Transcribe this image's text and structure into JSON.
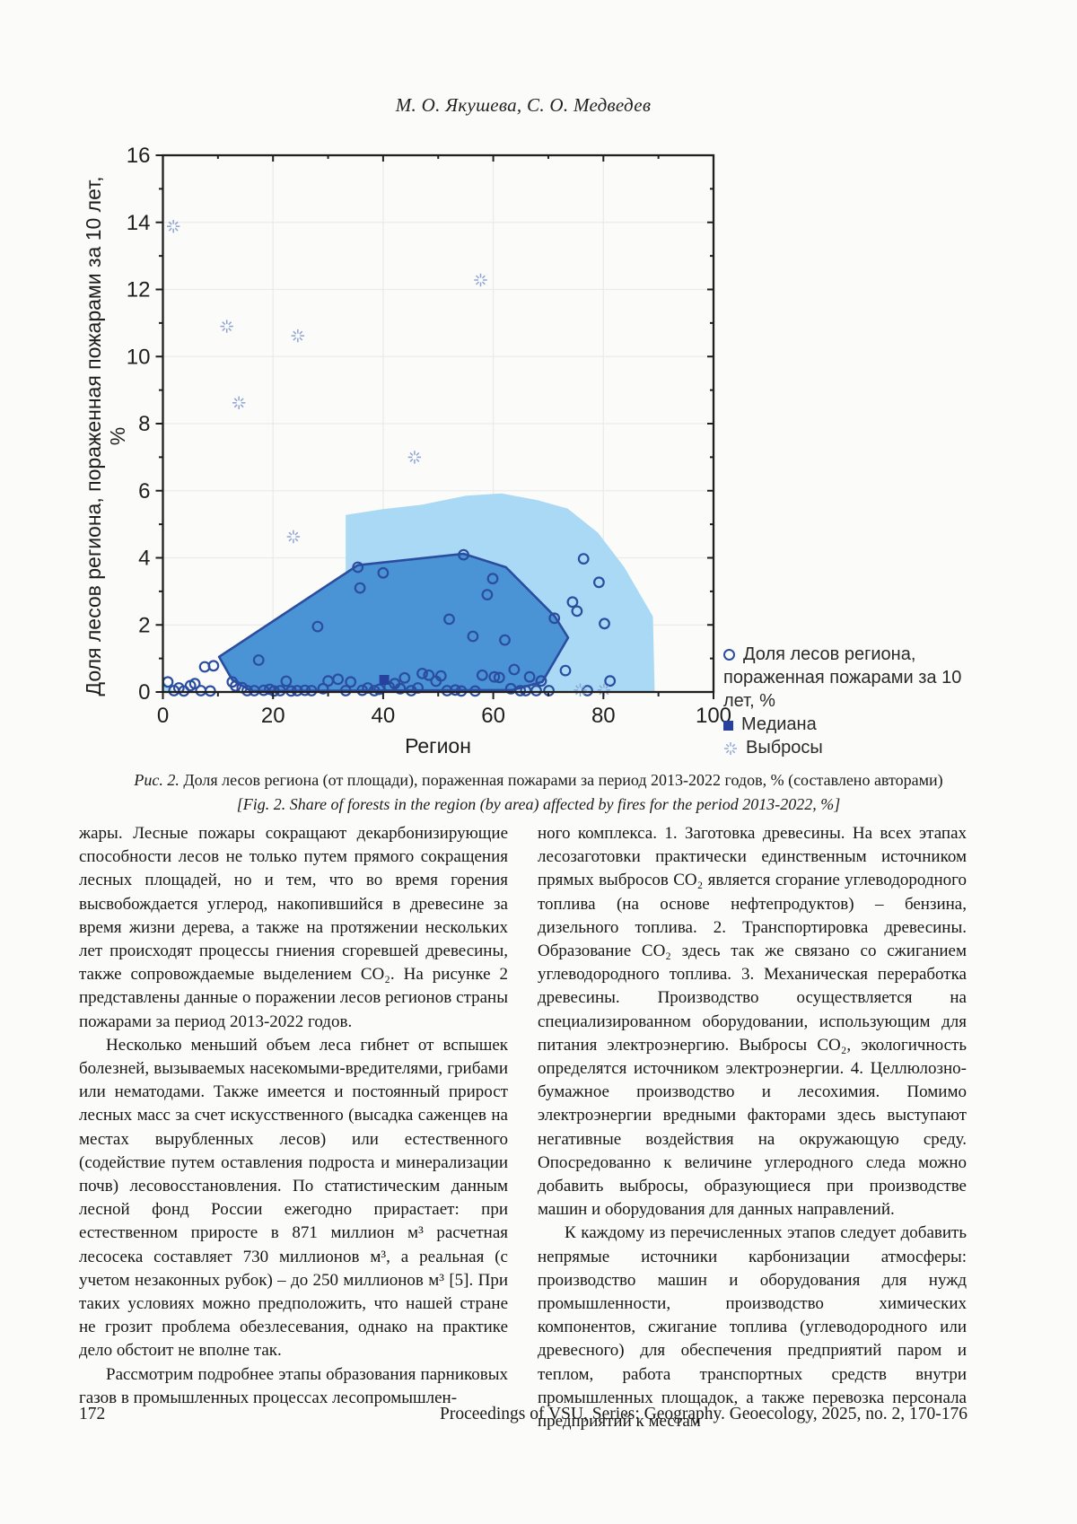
{
  "page": {
    "authors": "М. О. Якушева, С. О. Медведев",
    "footer": {
      "page_number": "172",
      "journal_line": "Proceedings of VSU, Series: Geography. Geoecology, 2025, no. 2, 170-176"
    }
  },
  "figure_caption": {
    "line1_label": "Рис. 2.",
    "line1_text": " Доля лесов региона (от площади), пораженная пожарами за период 2013-2022 годов, % (составлено авторами)",
    "line2_label": "[Fig. 2.",
    "line2_text": " Share of forests in the region (by area) affected by fires for the period 2013-2022, %]"
  },
  "chart_data": {
    "type": "scatter",
    "title": "",
    "xlabel": "Регион",
    "ylabel": "Доля лесов региона, пораженная пожарами за 10 лет, %",
    "xlim": [
      0,
      100
    ],
    "ylim": [
      0,
      16
    ],
    "xticks": [
      0,
      20,
      40,
      60,
      80,
      100
    ],
    "yticks": [
      0,
      2,
      4,
      6,
      8,
      10,
      12,
      14,
      16
    ],
    "x_minor_step": 10,
    "y_minor_step": 1,
    "grid": true,
    "legend": [
      {
        "marker": "open-circle",
        "label": "Доля лесов региона, пораженная пожарами за 10 лет, %"
      },
      {
        "marker": "filled-square",
        "label": "Медиана"
      },
      {
        "marker": "burst",
        "label": "Выбросы"
      }
    ],
    "colors": {
      "inner_fill": "#4a94d6",
      "inner_stroke": "#2b4da0",
      "outer_fill": "#a9d9f4",
      "marker_stroke": "#2b4da0",
      "median_fill": "#27429e",
      "outlier": "#8ea3d4",
      "grid": "#ebebeb",
      "axis": "#1f1f1f",
      "tick_label": "#1e1e1e"
    },
    "points": [
      [
        0.9,
        0.3
      ],
      [
        2.0,
        0.04
      ],
      [
        2.9,
        0.12
      ],
      [
        3.8,
        0.03
      ],
      [
        5.0,
        0.19
      ],
      [
        5.8,
        0.25
      ],
      [
        6.9,
        0.04
      ],
      [
        7.6,
        0.75
      ],
      [
        8.6,
        0.03
      ],
      [
        9.2,
        0.78
      ],
      [
        12.6,
        0.3
      ],
      [
        13.2,
        0.18
      ],
      [
        14.4,
        0.13
      ],
      [
        15.3,
        0.04
      ],
      [
        16.6,
        0.04
      ],
      [
        17.4,
        0.95
      ],
      [
        18.3,
        0.05
      ],
      [
        19.4,
        0.08
      ],
      [
        20.2,
        0.03
      ],
      [
        21.3,
        0.04
      ],
      [
        22.4,
        0.32
      ],
      [
        23.3,
        0.03
      ],
      [
        24.4,
        0.04
      ],
      [
        25.8,
        0.05
      ],
      [
        27.0,
        0.04
      ],
      [
        28.1,
        1.95
      ],
      [
        29.1,
        0.1
      ],
      [
        30.0,
        0.33
      ],
      [
        31.8,
        0.38
      ],
      [
        33.2,
        0.04
      ],
      [
        34.1,
        0.3
      ],
      [
        35.4,
        3.72
      ],
      [
        35.8,
        3.1
      ],
      [
        36.2,
        0.05
      ],
      [
        37.2,
        0.12
      ],
      [
        38.4,
        0.04
      ],
      [
        39.3,
        0.08
      ],
      [
        40.0,
        3.55
      ],
      [
        41.1,
        0.15
      ],
      [
        42.1,
        0.25
      ],
      [
        43.1,
        0.1
      ],
      [
        43.9,
        0.42
      ],
      [
        45.1,
        0.04
      ],
      [
        46.3,
        0.12
      ],
      [
        47.1,
        0.55
      ],
      [
        48.3,
        0.5
      ],
      [
        49.6,
        0.32
      ],
      [
        50.5,
        0.48
      ],
      [
        51.6,
        0.04
      ],
      [
        52.0,
        2.17
      ],
      [
        53.1,
        0.06
      ],
      [
        54.2,
        0.03
      ],
      [
        54.6,
        4.09
      ],
      [
        56.3,
        1.66
      ],
      [
        56.7,
        0.03
      ],
      [
        58.0,
        0.5
      ],
      [
        58.9,
        2.9
      ],
      [
        59.9,
        3.38
      ],
      [
        60.2,
        0.45
      ],
      [
        61.1,
        0.43
      ],
      [
        62.1,
        1.55
      ],
      [
        63.2,
        0.1
      ],
      [
        63.8,
        0.67
      ],
      [
        64.9,
        0.04
      ],
      [
        65.9,
        0.04
      ],
      [
        66.6,
        0.45
      ],
      [
        67.8,
        0.04
      ],
      [
        68.7,
        0.33
      ],
      [
        70.1,
        0.04
      ],
      [
        71.1,
        2.2
      ],
      [
        73.1,
        0.64
      ],
      [
        74.4,
        2.68
      ],
      [
        75.2,
        2.41
      ],
      [
        76.4,
        3.97
      ],
      [
        77.1,
        0.04
      ],
      [
        79.2,
        3.27
      ],
      [
        80.2,
        2.04
      ],
      [
        81.2,
        0.33
      ]
    ],
    "median": [
      40.2,
      0.36
    ],
    "outliers": [
      [
        1.9,
        13.88
      ],
      [
        11.6,
        10.9
      ],
      [
        13.8,
        8.62
      ],
      [
        24.5,
        10.62
      ],
      [
        23.7,
        4.63
      ],
      [
        45.7,
        7.0
      ],
      [
        57.7,
        12.28
      ],
      [
        75.8,
        0.06
      ],
      [
        80.1,
        0.06
      ]
    ],
    "inner_hull": [
      [
        10.2,
        1.05
      ],
      [
        35.4,
        3.78
      ],
      [
        54.6,
        4.12
      ],
      [
        62.3,
        3.72
      ],
      [
        71.2,
        2.25
      ],
      [
        73.6,
        1.62
      ],
      [
        68.9,
        0.3
      ],
      [
        63.5,
        0.06
      ],
      [
        16.0,
        0.03
      ],
      [
        12.6,
        0.36
      ]
    ],
    "outer_region": [
      [
        33.2,
        5.28
      ],
      [
        40.0,
        5.45
      ],
      [
        47.0,
        5.58
      ],
      [
        55.0,
        5.85
      ],
      [
        61.5,
        5.92
      ],
      [
        68.0,
        5.72
      ],
      [
        73.5,
        5.47
      ],
      [
        79.0,
        4.75
      ],
      [
        83.8,
        3.72
      ],
      [
        89.0,
        2.25
      ],
      [
        89.3,
        0.02
      ],
      [
        33.2,
        0.02
      ]
    ],
    "outer_sliver": [
      [
        0.1,
        0.32
      ],
      [
        1.9,
        0.02
      ],
      [
        0.1,
        0.02
      ]
    ]
  },
  "body": {
    "left_col": [
      {
        "indent": false,
        "text": "жары. Лесные пожары сокращают декарбонизирующие способности лесов не только путем прямого сокращения лесных площадей, но и тем, что во время горения высвобождается углерод, накопившийся в древесине за время жизни дерева, а также на протяжении нескольких лет происходят процессы гниения сгоревшей древесины, также сопровождаемые выделением CO₂. На рисунке 2 представлены данные о поражении лесов регионов страны пожарами за период 2013-2022 годов."
      },
      {
        "indent": true,
        "text": "Несколько меньший объем леса гибнет от вспышек болезней, вызываемых насекомыми-вредителями, грибами или нематодами. Также имеется и постоянный прирост лесных масс за счет искусственного (высадка саженцев на местах вырубленных лесов) или естественного (содействие путем оставления подроста и минерализации почв) лесовосстановления. По статистическим данным лесной фонд России ежегодно прирастает: при естественном приросте в 871 миллион м³ расчетная лесосека составляет 730 миллионов м³, а реальная (с учетом незаконных рубок) – до 250 миллионов м³ [5]. При таких условиях можно предположить, что нашей стране не грозит проблема обезлесевания, однако на практике дело обстоит не вполне так."
      },
      {
        "indent": true,
        "text": "Рассмотрим подробнее этапы образования парниковых газов в промышленных процессах лесопромышлен-"
      }
    ],
    "right_col": [
      {
        "indent": false,
        "text": "ного комплекса. 1. Заготовка древесины. На всех этапах лесозаготовки практически единственным источником прямых выбросов CO₂ является сгорание углеводородного топлива (на основе нефтепродуктов) – бензина, дизельного топлива. 2. Транспортировка древесины. Образование CO₂ здесь так же связано со сжиганием углеводородного топлива. 3. Механическая переработка древесины. Производство осуществляется на специализированном оборудовании, использующим для питания электроэнергию. Выбросы CO₂, экологичность определятся источником электроэнергии. 4. Целлюлозно-бумажное производство и лесохимия. Помимо электроэнергии вредными факторами здесь выступают негативные воздействия на окружающую среду. Опосредованно к величине углеродного следа можно добавить выбросы, образующиеся при производстве машин и оборудования для данных направлений."
      },
      {
        "indent": true,
        "text": "К каждому из перечисленных этапов следует добавить непрямые источники карбонизации атмосферы: производство машин и оборудования для нужд промышленности, производство химических компонентов, сжигание топлива (углеводородного или древесного) для обеспечения предприятий паром и теплом, работа транспортных средств внутри промышленных площадок, а также перевозка персонала предприятий к местам"
      }
    ]
  }
}
